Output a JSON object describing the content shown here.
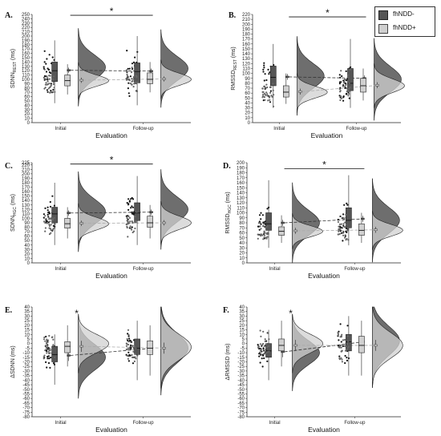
{
  "legend": {
    "items": [
      {
        "label": "fhNDD-",
        "color": "#555555"
      },
      {
        "label": "fhNDD+",
        "color": "#cfcfcf"
      }
    ]
  },
  "colors": {
    "group_neg": "#555555",
    "group_pos": "#d0d0d0",
    "line_neg": "#333333",
    "line_pos": "#aaaaaa",
    "dots": "#111111"
  },
  "panels": [
    {
      "label": "A.",
      "ylabel_main": "SDNN",
      "ylabel_sub": "REST",
      "ylabel_unit": " (ms)",
      "xlabel": "Evaluation",
      "sig": "*",
      "sig_top": true
    },
    {
      "label": "B.",
      "ylabel_main": "RMSSD",
      "ylabel_sub": "REST",
      "ylabel_unit": " (ms)",
      "xlabel": "Evaluation",
      "sig": "*",
      "sig_top": true
    },
    {
      "label": "C.",
      "ylabel_main": "SDNN",
      "ylabel_sub": "HGC",
      "ylabel_unit": " (ms)",
      "xlabel": "Evaluation",
      "sig": "*",
      "sig_top": true
    },
    {
      "label": "D.",
      "ylabel_main": "RMSSD",
      "ylabel_sub": "HGC",
      "ylabel_unit": " (ms)",
      "xlabel": "Evaluation",
      "sig": "*",
      "sig_top": true
    },
    {
      "label": "E.",
      "ylabel_main": "ΔSDNN",
      "ylabel_sub": "",
      "ylabel_unit": " (ms)",
      "xlabel": "Evaluation",
      "sig": "*",
      "sig_top": false
    },
    {
      "label": "F.",
      "ylabel_main": "ΔRMSSD",
      "ylabel_sub": "",
      "ylabel_unit": " (ms)",
      "xlabel": "Evaluation",
      "sig": "*",
      "sig_top": false
    }
  ],
  "chart_data": [
    {
      "type": "raincloud",
      "panel": "A.",
      "categories": [
        "Initial",
        "Follow-up"
      ],
      "xlabel": "Evaluation",
      "ylabel": "SDNNREST (ms)",
      "ylim": [
        0,
        250
      ],
      "yticks": [
        0,
        10,
        20,
        30,
        40,
        50,
        60,
        70,
        80,
        90,
        100,
        110,
        120,
        130,
        140,
        150,
        160,
        170,
        180,
        190,
        200,
        210,
        220,
        230,
        240,
        250
      ],
      "series": [
        {
          "name": "fhNDD-",
          "median": [
            120,
            118
          ],
          "q1": [
            95,
            92
          ],
          "q3": [
            140,
            138
          ],
          "wlo": [
            45,
            40
          ],
          "whi": [
            190,
            200
          ],
          "mean": [
            121,
            119
          ],
          "dens_peak": [
            128,
            125
          ],
          "dens_sd": [
            28,
            28
          ]
        },
        {
          "name": "fhNDD+",
          "median": [
            97,
            100
          ],
          "q1": [
            85,
            90
          ],
          "q3": [
            110,
            115
          ],
          "wlo": [
            65,
            70
          ],
          "whi": [
            135,
            140
          ],
          "mean": [
            98,
            101
          ],
          "dens_peak": [
            97,
            100
          ],
          "dens_sd": [
            13,
            14
          ]
        }
      ],
      "sig": {
        "from": "Initial",
        "to": "Follow-up",
        "y": 248
      }
    },
    {
      "type": "raincloud",
      "panel": "B.",
      "categories": [
        "Initial",
        "Follow-up"
      ],
      "xlabel": "Evaluation",
      "ylabel": "RMSSDREST (ms)",
      "ylim": [
        0,
        220
      ],
      "yticks": [
        0,
        10,
        20,
        30,
        40,
        50,
        60,
        70,
        80,
        90,
        100,
        110,
        120,
        130,
        140,
        150,
        160,
        170,
        180,
        190,
        200,
        210,
        220
      ],
      "series": [
        {
          "name": "fhNDD-",
          "median": [
            92,
            80
          ],
          "q1": [
            75,
            65
          ],
          "q3": [
            115,
            110
          ],
          "wlo": [
            30,
            30
          ],
          "whi": [
            160,
            170
          ],
          "mean": [
            93,
            90
          ],
          "dens_peak": [
            95,
            88
          ],
          "dens_sd": [
            25,
            26
          ]
        },
        {
          "name": "fhNDD+",
          "median": [
            62,
            75
          ],
          "q1": [
            52,
            62
          ],
          "q3": [
            75,
            90
          ],
          "wlo": [
            38,
            45
          ],
          "whi": [
            100,
            110
          ],
          "mean": [
            63,
            76
          ],
          "dens_peak": [
            62,
            75
          ],
          "dens_sd": [
            12,
            14
          ]
        }
      ],
      "sig": {
        "from": "Initial",
        "to": "Follow-up",
        "y": 215
      }
    },
    {
      "type": "raincloud",
      "panel": "C.",
      "categories": [
        "Initial",
        "Follow-up"
      ],
      "xlabel": "Evaluation",
      "ylabel": "SDNNHGC (ms)",
      "ylim": [
        0,
        225
      ],
      "yticks": [
        0,
        10,
        20,
        30,
        40,
        50,
        60,
        70,
        80,
        90,
        100,
        110,
        120,
        130,
        140,
        150,
        160,
        170,
        180,
        190,
        200,
        210,
        220,
        225
      ],
      "series": [
        {
          "name": "fhNDD-",
          "median": [
            110,
            112
          ],
          "q1": [
            90,
            95
          ],
          "q3": [
            125,
            135
          ],
          "wlo": [
            40,
            40
          ],
          "whi": [
            180,
            195
          ],
          "mean": [
            112,
            114
          ],
          "dens_peak": [
            115,
            120
          ],
          "dens_sd": [
            28,
            28
          ]
        },
        {
          "name": "fhNDD+",
          "median": [
            88,
            90
          ],
          "q1": [
            78,
            80
          ],
          "q3": [
            100,
            105
          ],
          "wlo": [
            55,
            55
          ],
          "whi": [
            125,
            130
          ],
          "mean": [
            89,
            90
          ],
          "dens_peak": [
            88,
            90
          ],
          "dens_sd": [
            14,
            15
          ]
        }
      ],
      "sig": {
        "from": "Initial",
        "to": "Follow-up",
        "y": 222
      }
    },
    {
      "type": "raincloud",
      "panel": "D.",
      "categories": [
        "Initial",
        "Follow-up"
      ],
      "xlabel": "Evaluation",
      "ylabel": "RMSSDHGC (ms)",
      "ylim": [
        0,
        200
      ],
      "yticks": [
        0,
        10,
        20,
        30,
        40,
        50,
        60,
        70,
        80,
        90,
        100,
        110,
        120,
        130,
        140,
        150,
        160,
        170,
        180,
        190,
        200
      ],
      "series": [
        {
          "name": "fhNDD-",
          "median": [
            78,
            85
          ],
          "q1": [
            65,
            70
          ],
          "q3": [
            100,
            110
          ],
          "wlo": [
            30,
            35
          ],
          "whi": [
            165,
            175
          ],
          "mean": [
            80,
            88
          ],
          "dens_peak": [
            80,
            85
          ],
          "dens_sd": [
            25,
            26
          ]
        },
        {
          "name": "fhNDD+",
          "median": [
            63,
            65
          ],
          "q1": [
            55,
            55
          ],
          "q3": [
            72,
            78
          ],
          "wlo": [
            40,
            40
          ],
          "whi": [
            95,
            100
          ],
          "mean": [
            64,
            66
          ],
          "dens_peak": [
            63,
            65
          ],
          "dens_sd": [
            11,
            12
          ]
        }
      ],
      "sig": {
        "from": "Initial",
        "to": "Follow-up",
        "y": 188
      }
    },
    {
      "type": "raincloud",
      "panel": "E.",
      "categories": [
        "Initial",
        "Follow-up"
      ],
      "xlabel": "Evaluation",
      "ylabel": "ΔSDNN (ms)",
      "ylim": [
        -80,
        40
      ],
      "yticks": [
        -80,
        -75,
        -70,
        -65,
        -60,
        -55,
        -50,
        -45,
        -40,
        -35,
        -30,
        -25,
        -20,
        -15,
        -10,
        -5,
        0,
        5,
        10,
        15,
        20,
        25,
        30,
        35,
        40
      ],
      "series": [
        {
          "name": "fhNDD-",
          "median": [
            -12,
            -5
          ],
          "q1": [
            -20,
            -12
          ],
          "q3": [
            -3,
            5
          ],
          "wlo": [
            -45,
            -40
          ],
          "whi": [
            10,
            25
          ],
          "mean": [
            -13,
            -5
          ],
          "dens_peak": [
            -15,
            -5
          ],
          "dens_sd": [
            14,
            16
          ]
        },
        {
          "name": "fhNDD+",
          "median": [
            -3,
            -5
          ],
          "q1": [
            -10,
            -12
          ],
          "q3": [
            2,
            3
          ],
          "wlo": [
            -25,
            -35
          ],
          "whi": [
            20,
            20
          ],
          "mean": [
            -3,
            -5
          ],
          "dens_peak": [
            0,
            -4
          ],
          "dens_sd": [
            10,
            14
          ]
        }
      ],
      "sig": {
        "at": "Initial",
        "y": 38
      }
    },
    {
      "type": "raincloud",
      "panel": "F.",
      "categories": [
        "Initial",
        "Follow-up"
      ],
      "xlabel": "Evaluation",
      "ylabel": "ΔRMSSD (ms)",
      "ylim": [
        -80,
        40
      ],
      "yticks": [
        -80,
        -75,
        -70,
        -65,
        -60,
        -55,
        -50,
        -45,
        -40,
        -35,
        -30,
        -25,
        -20,
        -15,
        -10,
        -5,
        0,
        5,
        10,
        15,
        20,
        25,
        30,
        35,
        40
      ],
      "series": [
        {
          "name": "fhNDD-",
          "median": [
            -8,
            2
          ],
          "q1": [
            -15,
            -8
          ],
          "q3": [
            0,
            10
          ],
          "wlo": [
            -40,
            -35
          ],
          "whi": [
            15,
            30
          ],
          "mean": [
            -9,
            2
          ],
          "dens_peak": [
            -10,
            3
          ],
          "dens_sd": [
            13,
            16
          ]
        },
        {
          "name": "fhNDD+",
          "median": [
            -2,
            -2
          ],
          "q1": [
            -8,
            -10
          ],
          "q3": [
            5,
            8
          ],
          "wlo": [
            -25,
            -35
          ],
          "whi": [
            25,
            25
          ],
          "mean": [
            -2,
            -2
          ],
          "dens_peak": [
            0,
            -2
          ],
          "dens_sd": [
            10,
            14
          ]
        }
      ],
      "sig": {
        "at": "Initial",
        "y": 38
      }
    }
  ]
}
